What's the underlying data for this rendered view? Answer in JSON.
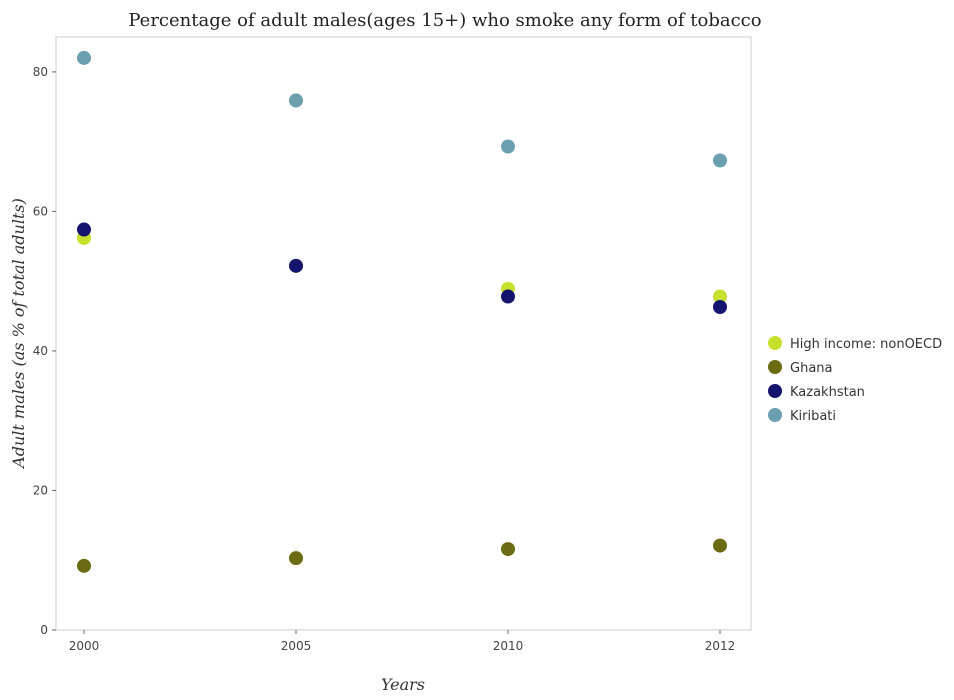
{
  "chart_data": {
    "type": "scatter",
    "title": "Percentage of adult males(ages 15+) who smoke any form of tobacco",
    "xlabel": "Years",
    "ylabel": "Adult males (as % of total adults)",
    "categories": [
      "2000",
      "2005",
      "2010",
      "2012"
    ],
    "ylim": [
      0,
      85
    ],
    "yticks": [
      "0",
      "20",
      "40",
      "60",
      "80"
    ],
    "grid": false,
    "legend_position": "right",
    "series": [
      {
        "name": "High income: nonOECD",
        "color": "#c6e02c",
        "values": [
          56.2,
          52.2,
          48.9,
          47.8
        ]
      },
      {
        "name": "Ghana",
        "color": "#6b6b14",
        "values": [
          9.2,
          10.3,
          11.6,
          12.1
        ]
      },
      {
        "name": "Kazakhstan",
        "color": "#14146e",
        "values": [
          57.4,
          52.2,
          47.8,
          46.3
        ]
      },
      {
        "name": "Kiribati",
        "color": "#6a9fb0",
        "values": [
          82.0,
          75.9,
          69.3,
          67.3
        ]
      }
    ]
  }
}
